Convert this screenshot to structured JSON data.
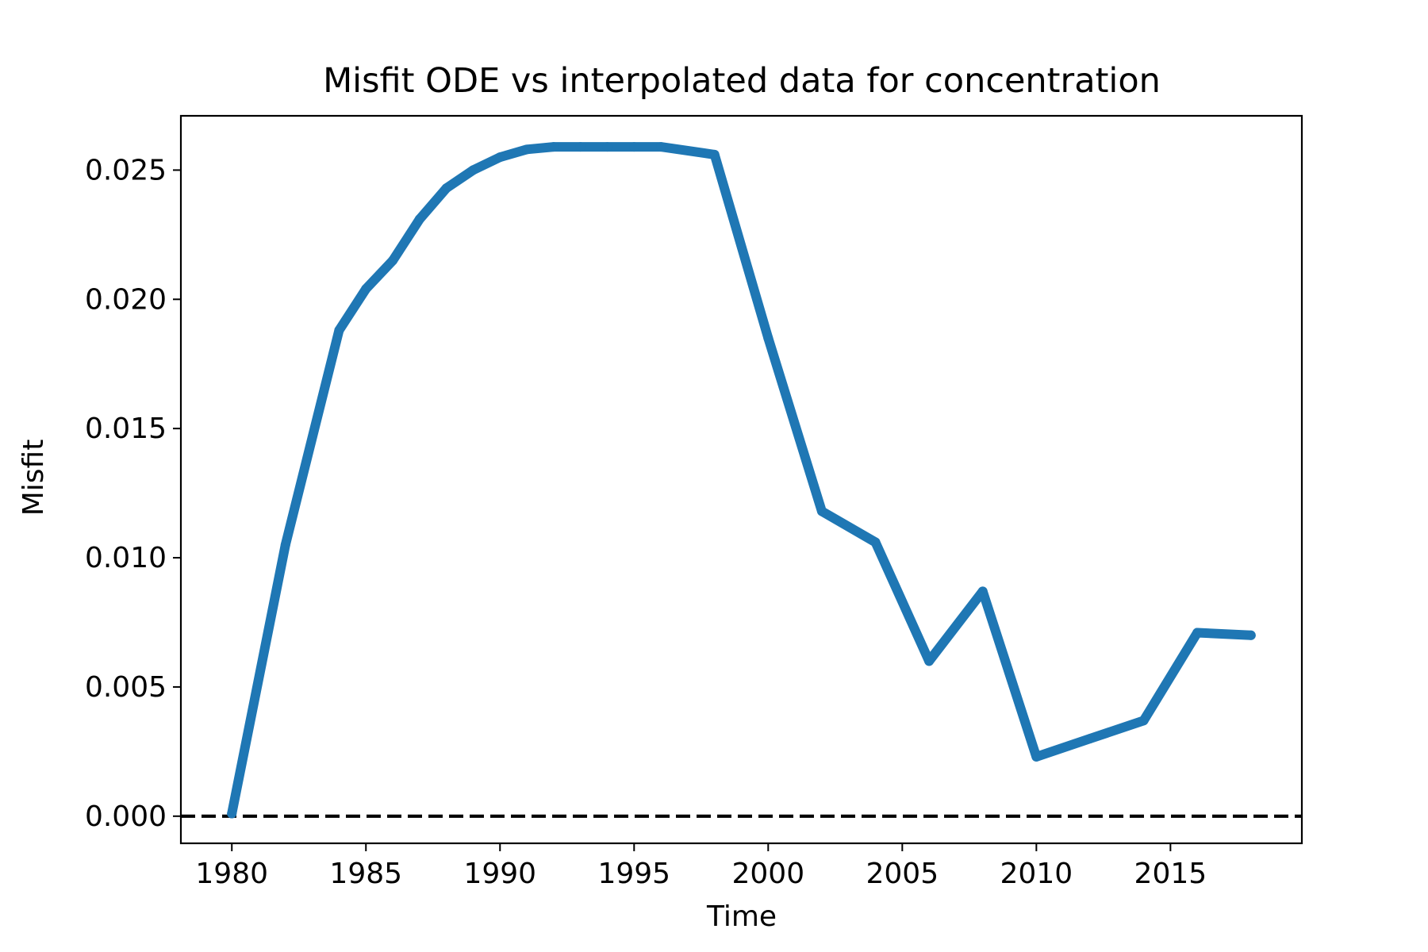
{
  "chart_data": {
    "type": "line",
    "title": "Misfit ODE vs interpolated data for concentration",
    "xlabel": "Time",
    "ylabel": "Misfit",
    "xlim": [
      1978.1,
      2019.9
    ],
    "ylim": [
      -0.00105,
      0.0271
    ],
    "xticks": [
      "1980",
      "1985",
      "1990",
      "1995",
      "2000",
      "2005",
      "2010",
      "2015"
    ],
    "yticks": [
      "0.000",
      "0.005",
      "0.010",
      "0.015",
      "0.020",
      "0.025"
    ],
    "grid": false,
    "legend": "none",
    "series": [
      {
        "color": "#1f77b4",
        "x": [
          1980,
          1982,
          1984,
          1985,
          1986,
          1987,
          1988,
          1989,
          1990,
          1991,
          1992,
          1993,
          1994,
          1995,
          1996,
          1998,
          2000,
          2002,
          2004,
          2006,
          2008,
          2010,
          2012,
          2014,
          2016,
          2018
        ],
        "y": [
          0.0001,
          0.0105,
          0.0188,
          0.0204,
          0.0215,
          0.0231,
          0.0243,
          0.025,
          0.0255,
          0.0258,
          0.0259,
          0.0259,
          0.0259,
          0.0259,
          0.0259,
          0.0256,
          0.0185,
          0.0118,
          0.0106,
          0.006,
          0.0087,
          0.0023,
          0.003,
          0.0037,
          0.0071,
          0.007
        ]
      }
    ],
    "reference_line": {
      "y": 0,
      "style": "dashed",
      "color": "#000000"
    }
  }
}
